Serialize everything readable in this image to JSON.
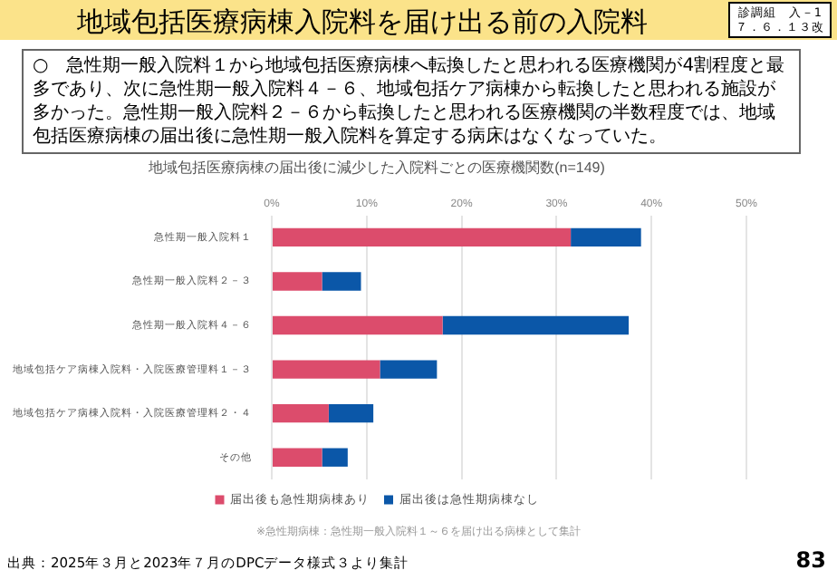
{
  "chart_data": {
    "type": "bar",
    "orientation": "horizontal",
    "stacked": true,
    "title": "地域包括医療病棟入院料を届け出る前の入院料",
    "subtitle": "地域包括医療病棟の届出後に減少した入院料ごとの医療機関数(n=149)",
    "categories": [
      "急性期一般入院料１",
      "急性期一般入院料２－３",
      "急性期一般入院料４－６",
      "地域包括ケア病棟入院料・入院医療管理料１－３",
      "地域包括ケア病棟入院料・入院医療管理料２・４",
      "その他"
    ],
    "series": [
      {
        "name": "届出後も急性期病棟あり",
        "color": "#dc4c6c",
        "values": [
          31.5,
          5.3,
          18.0,
          11.4,
          6.0,
          5.3
        ]
      },
      {
        "name": "届出後は急性期病棟なし",
        "color": "#0b57a8",
        "values": [
          7.4,
          4.1,
          19.6,
          6.0,
          4.7,
          2.7
        ]
      }
    ],
    "xlim": [
      0,
      50
    ],
    "xticks": [
      {
        "value": 0,
        "label": "0%"
      },
      {
        "value": 10,
        "label": "10%"
      },
      {
        "value": 20,
        "label": "20%"
      },
      {
        "value": 30,
        "label": "30%"
      },
      {
        "value": 40,
        "label": "40%"
      },
      {
        "value": 50,
        "label": "50%"
      }
    ],
    "grid": "x",
    "legend": "bottom",
    "annotations": [
      "診調組　入－1",
      "７．６．１３改",
      "○　急性期一般入院料１から地域包括医療病棟へ転換したと思われる医療機関が4割程度と最多であり、次に急性期一般入院料４－６、地域包括ケア病棟から転換したと思われる施設が多かった。急性期一般入院料２－６から転換したと思われる医療機関の半数程度では、地域包括医療病棟の届出後に急性期一般入院料を算定する病床はなくなっていた。",
      "※急性期病棟：急性期一般入院料１～６を届け出る病棟として集計",
      "出典：2025年３月と2023年７月のDPCデータ様式３より集計",
      "83"
    ]
  }
}
